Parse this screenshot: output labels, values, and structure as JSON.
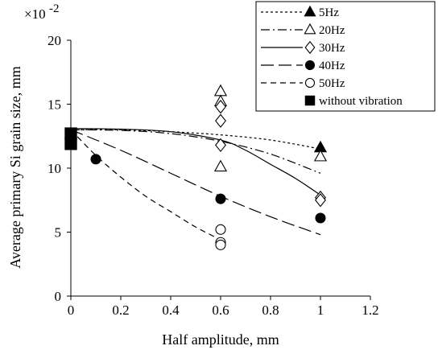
{
  "chart_data": {
    "type": "scatter",
    "xlabel": "Half amplitude, mm",
    "ylabel": "Average primary Si grain size, mm",
    "y_multiplier": "×10",
    "y_multiplier_exponent": "-2",
    "xlim": [
      0,
      1.2
    ],
    "ylim": [
      0,
      20
    ],
    "xticks": [
      0,
      0.2,
      0.4,
      0.6,
      0.8,
      1,
      1.2
    ],
    "xtick_labels": [
      "0",
      "0.2",
      "0.4",
      "0.6",
      "0.8",
      "1",
      "1.2"
    ],
    "yticks": [
      0,
      5,
      10,
      15,
      20
    ],
    "ytick_labels": [
      "0",
      "5",
      "10",
      "15",
      "20"
    ],
    "grid": false,
    "legend_position": "top-right",
    "series": [
      {
        "name": "5Hz",
        "marker": "triangle-filled",
        "line": "short-dash",
        "points": [
          [
            1.0,
            11.6
          ]
        ],
        "curve": [
          [
            0,
            13.0
          ],
          [
            0.2,
            13.0
          ],
          [
            0.4,
            12.85
          ],
          [
            0.6,
            12.6
          ],
          [
            0.8,
            12.2
          ],
          [
            1.0,
            11.5
          ]
        ]
      },
      {
        "name": "20Hz",
        "marker": "triangle-open",
        "line": "dash-dot",
        "points": [
          [
            0.6,
            16.0
          ],
          [
            0.6,
            15.2
          ],
          [
            0.6,
            10.1
          ],
          [
            1.0,
            10.9
          ]
        ],
        "curve": [
          [
            0,
            13.0
          ],
          [
            0.2,
            12.95
          ],
          [
            0.4,
            12.7
          ],
          [
            0.6,
            12.1
          ],
          [
            0.8,
            11.1
          ],
          [
            1.0,
            9.6
          ]
        ]
      },
      {
        "name": "30Hz",
        "marker": "diamond-open",
        "line": "solid",
        "points": [
          [
            0.6,
            14.8
          ],
          [
            0.6,
            13.7
          ],
          [
            0.6,
            11.8
          ],
          [
            1.0,
            7.7
          ],
          [
            1.0,
            7.5
          ]
        ],
        "curve": [
          [
            0,
            13.1
          ],
          [
            0.2,
            13.05
          ],
          [
            0.4,
            12.85
          ],
          [
            0.6,
            12.2
          ],
          [
            0.7,
            11.4
          ],
          [
            0.8,
            10.3
          ],
          [
            0.9,
            9.2
          ],
          [
            1.0,
            7.9
          ]
        ]
      },
      {
        "name": "40Hz",
        "marker": "circle-filled",
        "line": "long-dash",
        "points": [
          [
            0.1,
            10.7
          ],
          [
            0.6,
            7.6
          ],
          [
            1.0,
            6.1
          ]
        ],
        "curve": [
          [
            0,
            13.0
          ],
          [
            0.2,
            11.4
          ],
          [
            0.4,
            9.6
          ],
          [
            0.6,
            7.8
          ],
          [
            0.8,
            6.2
          ],
          [
            1.0,
            4.8
          ]
        ]
      },
      {
        "name": "50Hz",
        "marker": "circle-open",
        "line": "medium-dash",
        "points": [
          [
            0.6,
            5.2
          ],
          [
            0.6,
            4.2
          ],
          [
            0.6,
            4.0
          ]
        ],
        "curve": [
          [
            0,
            13.0
          ],
          [
            0.1,
            11.0
          ],
          [
            0.2,
            9.3
          ],
          [
            0.3,
            7.8
          ],
          [
            0.4,
            6.6
          ],
          [
            0.5,
            5.4
          ],
          [
            0.6,
            4.4
          ]
        ]
      },
      {
        "name": "without vibration",
        "marker": "square-filled",
        "line": "none",
        "points": [
          [
            0,
            12.7
          ],
          [
            0,
            11.9
          ]
        ],
        "curve": []
      }
    ]
  }
}
